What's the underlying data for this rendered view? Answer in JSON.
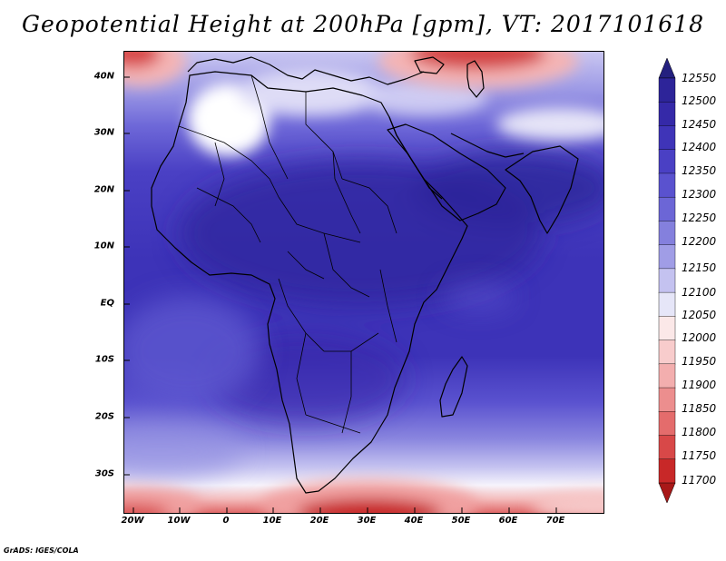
{
  "title": "Geopotential Height at 200hPa [gpm], VT: 2017101618",
  "footer": "GrADS: IGES/COLA",
  "map": {
    "variable": "Geopotential Height",
    "level": "200hPa",
    "units": "gpm",
    "valid_time": "2017101618",
    "lon_range": [
      -23,
      80
    ],
    "lat_range": [
      -37,
      45
    ],
    "lat_ticks": [
      "40N",
      "30N",
      "20N",
      "10N",
      "EQ",
      "10S",
      "20S",
      "30S"
    ],
    "lon_ticks": [
      "20W",
      "10W",
      "0",
      "10E",
      "20E",
      "30E",
      "40E",
      "50E",
      "60E",
      "70E"
    ]
  },
  "colorbar": {
    "levels": [
      "12550",
      "12500",
      "12450",
      "12400",
      "12350",
      "12300",
      "12250",
      "12200",
      "12150",
      "12100",
      "12050",
      "12000",
      "11950",
      "11900",
      "11850",
      "11800",
      "11750",
      "11700"
    ],
    "colors": [
      "#2d2499",
      "#3529a8",
      "#3f34b8",
      "#4a40c4",
      "#5a52cf",
      "#6c66d6",
      "#8480dd",
      "#a09de6",
      "#c4c2f0",
      "#e6e6f8",
      "#fbe8e8",
      "#f8cccc",
      "#f3aeae",
      "#ec8e8e",
      "#e46c6c",
      "#d84848",
      "#c82828"
    ],
    "top_arrow_color": "#24207f",
    "bottom_arrow_color": "#a81818"
  }
}
